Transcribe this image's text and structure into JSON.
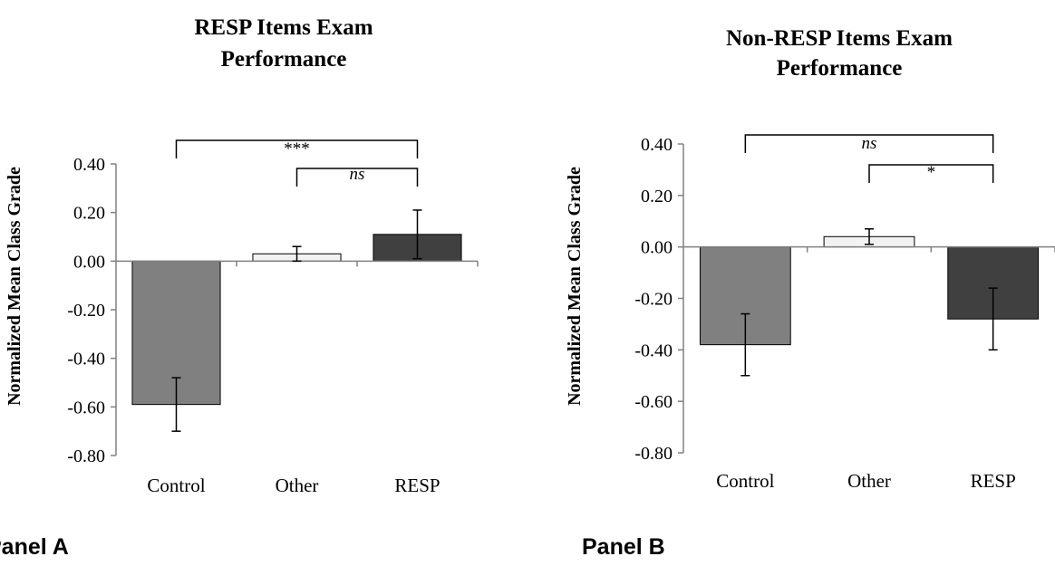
{
  "chart_data": [
    {
      "type": "bar",
      "title_lines": [
        "RESP Items Exam",
        "Performance"
      ],
      "ylabel": "Normalized Mean Class Grade",
      "xlabel": "",
      "categories": [
        "Control",
        "Other",
        "RESP"
      ],
      "values": [
        -0.59,
        0.03,
        0.11
      ],
      "errors": [
        0.11,
        0.03,
        0.1
      ],
      "colors": [
        "#808080",
        "#f2f2f2",
        "#404040"
      ],
      "ylim": [
        -0.8,
        0.4
      ],
      "yticks": [
        "0.40",
        "0.20",
        "0.00",
        "-0.20",
        "-0.40",
        "-0.60",
        "-0.80"
      ],
      "grid": false,
      "significance": [
        {
          "from": "Control",
          "to": "RESP",
          "label": "***",
          "italic": false
        },
        {
          "from": "Other",
          "to": "RESP",
          "label": "ns",
          "italic": true
        }
      ],
      "panel_label": "Panel A"
    },
    {
      "type": "bar",
      "title_lines": [
        "Non-RESP Items Exam",
        "Performance"
      ],
      "ylabel": "Normalized Mean Class Grade",
      "xlabel": "",
      "categories": [
        "Control",
        "Other",
        "RESP"
      ],
      "values": [
        -0.38,
        0.04,
        -0.28
      ],
      "errors": [
        0.12,
        0.03,
        0.12
      ],
      "colors": [
        "#808080",
        "#f2f2f2",
        "#404040"
      ],
      "ylim": [
        -0.8,
        0.4
      ],
      "yticks": [
        "0.40",
        "0.20",
        "0.00",
        "-0.20",
        "-0.40",
        "-0.60",
        "-0.80"
      ],
      "grid": false,
      "significance": [
        {
          "from": "Control",
          "to": "RESP",
          "label": "ns",
          "italic": true
        },
        {
          "from": "Other",
          "to": "RESP",
          "label": "*",
          "italic": false
        }
      ],
      "panel_label": "Panel B"
    }
  ]
}
